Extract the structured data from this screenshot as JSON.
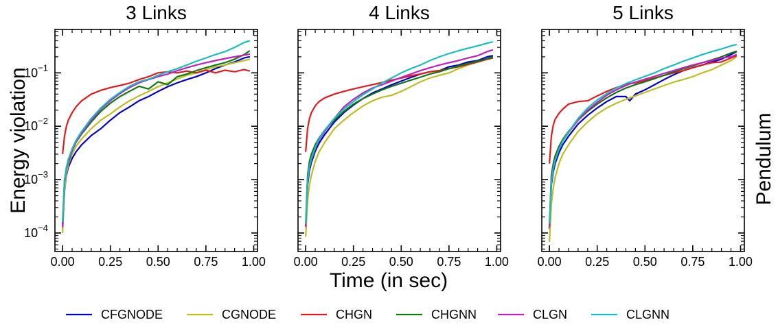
{
  "figure": {
    "ylabel": "Energy violation",
    "xlabel": "Time (in sec)",
    "side_label": "Pendulum"
  },
  "legend": [
    {
      "name": "CFGNODE",
      "color": "#0000cc"
    },
    {
      "name": "CGNODE",
      "color": "#bcbd22"
    },
    {
      "name": "CHGN",
      "color": "#e31a1c"
    },
    {
      "name": "CHGNN",
      "color": "#117711"
    },
    {
      "name": "CLGN",
      "color": "#c020c0"
    },
    {
      "name": "CLGNN",
      "color": "#17bebe"
    }
  ],
  "chart_data": [
    {
      "type": "line",
      "title": "3 Links",
      "xlabel": "Time (in sec)",
      "ylabel": "Energy violation",
      "yscale": "log",
      "xlim": [
        -0.04,
        1.02
      ],
      "ylim": [
        4.5e-05,
        0.65
      ],
      "xticks": [
        0.0,
        0.25,
        0.5,
        0.75,
        1.0
      ],
      "xtick_labels": [
        "0.00",
        "0.25",
        "0.50",
        "0.75",
        "1.00"
      ],
      "ytick_exponents": [
        -4,
        -3,
        -2,
        -1
      ],
      "x": [
        0.0,
        0.01,
        0.02,
        0.03,
        0.05,
        0.07,
        0.1,
        0.15,
        0.2,
        0.25,
        0.3,
        0.35,
        0.4,
        0.45,
        0.5,
        0.55,
        0.6,
        0.65,
        0.7,
        0.75,
        0.8,
        0.85,
        0.9,
        0.95,
        0.98
      ],
      "series": [
        {
          "name": "CFGNODE",
          "color": "#0000cc",
          "values": [
            0.00012,
            0.0006,
            0.0012,
            0.0017,
            0.0025,
            0.0033,
            0.0045,
            0.0067,
            0.009,
            0.013,
            0.018,
            0.023,
            0.03,
            0.036,
            0.045,
            0.055,
            0.065,
            0.075,
            0.085,
            0.1,
            0.12,
            0.14,
            0.16,
            0.19,
            0.2
          ]
        },
        {
          "name": "CGNODE",
          "color": "#bcbd22",
          "values": [
            0.0001,
            0.0006,
            0.0013,
            0.0019,
            0.003,
            0.0042,
            0.0058,
            0.009,
            0.013,
            0.017,
            0.023,
            0.03,
            0.037,
            0.045,
            0.055,
            0.065,
            0.077,
            0.09,
            0.1,
            0.115,
            0.13,
            0.14,
            0.155,
            0.17,
            0.18
          ]
        },
        {
          "name": "CHGN",
          "color": "#e31a1c",
          "values": [
            0.003,
            0.0065,
            0.01,
            0.013,
            0.018,
            0.023,
            0.03,
            0.04,
            0.047,
            0.053,
            0.058,
            0.064,
            0.075,
            0.085,
            0.1,
            0.105,
            0.1,
            0.108,
            0.1,
            0.112,
            0.1,
            0.112,
            0.105,
            0.115,
            0.108
          ]
        },
        {
          "name": "CHGNN",
          "color": "#117711",
          "values": [
            0.00015,
            0.0009,
            0.0017,
            0.0021,
            0.0035,
            0.005,
            0.0072,
            0.012,
            0.019,
            0.027,
            0.036,
            0.045,
            0.056,
            0.05,
            0.068,
            0.06,
            0.085,
            0.095,
            0.11,
            0.125,
            0.14,
            0.155,
            0.18,
            0.22,
            0.26
          ]
        },
        {
          "name": "CLGN",
          "color": "#c020c0",
          "values": [
            0.00013,
            0.0009,
            0.0016,
            0.0022,
            0.0035,
            0.0051,
            0.0075,
            0.013,
            0.021,
            0.03,
            0.041,
            0.053,
            0.065,
            0.075,
            0.085,
            0.095,
            0.11,
            0.125,
            0.14,
            0.155,
            0.17,
            0.185,
            0.2,
            0.215,
            0.225
          ]
        },
        {
          "name": "CLGNN",
          "color": "#17bebe",
          "values": [
            0.00016,
            0.001,
            0.0017,
            0.0024,
            0.0038,
            0.0054,
            0.008,
            0.014,
            0.022,
            0.032,
            0.043,
            0.056,
            0.068,
            0.076,
            0.09,
            0.105,
            0.12,
            0.14,
            0.165,
            0.19,
            0.22,
            0.25,
            0.3,
            0.37,
            0.4
          ]
        }
      ]
    },
    {
      "type": "line",
      "title": "4 Links",
      "yscale": "log",
      "xlim": [
        -0.04,
        1.02
      ],
      "ylim": [
        4.5e-05,
        0.65
      ],
      "xticks": [
        0.0,
        0.25,
        0.5,
        0.75,
        1.0
      ],
      "xtick_labels": [
        "0.00",
        "0.25",
        "0.50",
        "0.75",
        "1.00"
      ],
      "ytick_exponents": [
        -4,
        -3,
        -2,
        -1
      ],
      "x": [
        0.0,
        0.01,
        0.02,
        0.03,
        0.05,
        0.07,
        0.1,
        0.15,
        0.2,
        0.25,
        0.3,
        0.35,
        0.4,
        0.45,
        0.5,
        0.55,
        0.6,
        0.65,
        0.7,
        0.75,
        0.8,
        0.85,
        0.9,
        0.95,
        0.98
      ],
      "series": [
        {
          "name": "CFGNODE",
          "color": "#0000cc",
          "values": [
            0.00013,
            0.0008,
            0.0015,
            0.0021,
            0.0034,
            0.0048,
            0.007,
            0.012,
            0.018,
            0.025,
            0.033,
            0.042,
            0.05,
            0.06,
            0.07,
            0.082,
            0.095,
            0.105,
            0.11,
            0.13,
            0.14,
            0.16,
            0.17,
            0.2,
            0.21
          ]
        },
        {
          "name": "CGNODE",
          "color": "#bcbd22",
          "values": [
            8.5e-05,
            0.0004,
            0.0008,
            0.0012,
            0.0022,
            0.0033,
            0.005,
            0.009,
            0.013,
            0.018,
            0.024,
            0.03,
            0.035,
            0.038,
            0.045,
            0.055,
            0.068,
            0.08,
            0.09,
            0.1,
            0.12,
            0.14,
            0.16,
            0.18,
            0.19
          ]
        },
        {
          "name": "CHGN",
          "color": "#e31a1c",
          "values": [
            0.0033,
            0.009,
            0.014,
            0.018,
            0.024,
            0.029,
            0.034,
            0.04,
            0.045,
            0.05,
            0.055,
            0.06,
            0.066,
            0.073,
            0.08,
            0.088,
            0.095,
            0.105,
            0.11,
            0.12,
            0.13,
            0.145,
            0.16,
            0.18,
            0.19
          ]
        },
        {
          "name": "CHGNN",
          "color": "#117711",
          "values": [
            0.00014,
            0.0012,
            0.0022,
            0.003,
            0.0045,
            0.006,
            0.0085,
            0.013,
            0.019,
            0.026,
            0.033,
            0.04,
            0.048,
            0.056,
            0.064,
            0.073,
            0.083,
            0.095,
            0.105,
            0.12,
            0.135,
            0.15,
            0.165,
            0.185,
            0.2
          ]
        },
        {
          "name": "CLGN",
          "color": "#c020c0",
          "values": [
            0.00013,
            0.0009,
            0.0017,
            0.0024,
            0.0038,
            0.0055,
            0.008,
            0.014,
            0.023,
            0.032,
            0.042,
            0.052,
            0.06,
            0.07,
            0.082,
            0.095,
            0.11,
            0.125,
            0.14,
            0.155,
            0.17,
            0.19,
            0.21,
            0.25,
            0.27
          ]
        },
        {
          "name": "CLGNN",
          "color": "#17bebe",
          "values": [
            0.00015,
            0.001,
            0.0018,
            0.0025,
            0.004,
            0.0058,
            0.0085,
            0.014,
            0.021,
            0.029,
            0.039,
            0.05,
            0.065,
            0.08,
            0.1,
            0.12,
            0.14,
            0.17,
            0.2,
            0.23,
            0.26,
            0.29,
            0.32,
            0.36,
            0.38
          ]
        }
      ]
    },
    {
      "type": "line",
      "title": "5 Links",
      "yscale": "log",
      "xlim": [
        -0.04,
        1.02
      ],
      "ylim": [
        4.5e-05,
        0.65
      ],
      "xticks": [
        0.0,
        0.25,
        0.5,
        0.75,
        1.0
      ],
      "xtick_labels": [
        "0.00",
        "0.25",
        "0.50",
        "0.75",
        "1.00"
      ],
      "ytick_exponents": [
        -4,
        -3,
        -2,
        -1
      ],
      "x": [
        0.0,
        0.01,
        0.02,
        0.03,
        0.05,
        0.07,
        0.1,
        0.15,
        0.2,
        0.25,
        0.3,
        0.35,
        0.4,
        0.42,
        0.45,
        0.5,
        0.55,
        0.6,
        0.65,
        0.7,
        0.75,
        0.8,
        0.85,
        0.9,
        0.95,
        0.98
      ],
      "series": [
        {
          "name": "CFGNODE",
          "color": "#0000cc",
          "values": [
            0.00012,
            0.0008,
            0.0014,
            0.002,
            0.0032,
            0.0045,
            0.0065,
            0.011,
            0.016,
            0.022,
            0.029,
            0.036,
            0.036,
            0.03,
            0.04,
            0.048,
            0.06,
            0.075,
            0.092,
            0.11,
            0.125,
            0.14,
            0.16,
            0.18,
            0.22,
            0.25
          ]
        },
        {
          "name": "CGNODE",
          "color": "#bcbd22",
          "values": [
            6.8e-05,
            0.00035,
            0.0007,
            0.0011,
            0.002,
            0.003,
            0.0045,
            0.008,
            0.012,
            0.017,
            0.022,
            0.027,
            0.032,
            0.034,
            0.037,
            0.043,
            0.05,
            0.058,
            0.067,
            0.075,
            0.085,
            0.1,
            0.115,
            0.14,
            0.17,
            0.2
          ]
        },
        {
          "name": "CHGN",
          "color": "#e31a1c",
          "values": [
            0.002,
            0.0065,
            0.0105,
            0.0135,
            0.0175,
            0.021,
            0.026,
            0.029,
            0.03,
            0.037,
            0.045,
            0.053,
            0.06,
            0.063,
            0.065,
            0.072,
            0.08,
            0.09,
            0.1,
            0.11,
            0.125,
            0.14,
            0.155,
            0.16,
            0.19,
            0.21
          ]
        },
        {
          "name": "CHGNN",
          "color": "#117711",
          "values": [
            0.00014,
            0.0012,
            0.002,
            0.0028,
            0.0042,
            0.0057,
            0.008,
            0.013,
            0.019,
            0.026,
            0.034,
            0.043,
            0.052,
            0.055,
            0.06,
            0.068,
            0.078,
            0.09,
            0.105,
            0.12,
            0.135,
            0.155,
            0.175,
            0.2,
            0.235,
            0.255
          ]
        },
        {
          "name": "CLGN",
          "color": "#c020c0",
          "values": [
            0.00013,
            0.001,
            0.0017,
            0.0024,
            0.0038,
            0.0053,
            0.0076,
            0.013,
            0.02,
            0.028,
            0.038,
            0.048,
            0.058,
            0.062,
            0.067,
            0.076,
            0.086,
            0.098,
            0.11,
            0.125,
            0.14,
            0.155,
            0.17,
            0.19,
            0.2,
            0.22
          ]
        },
        {
          "name": "CLGNN",
          "color": "#17bebe",
          "values": [
            0.00015,
            0.0009,
            0.0016,
            0.0023,
            0.0037,
            0.0053,
            0.0078,
            0.014,
            0.022,
            0.031,
            0.041,
            0.052,
            0.063,
            0.067,
            0.074,
            0.086,
            0.1,
            0.12,
            0.14,
            0.165,
            0.19,
            0.22,
            0.25,
            0.28,
            0.32,
            0.34
          ]
        }
      ]
    }
  ]
}
